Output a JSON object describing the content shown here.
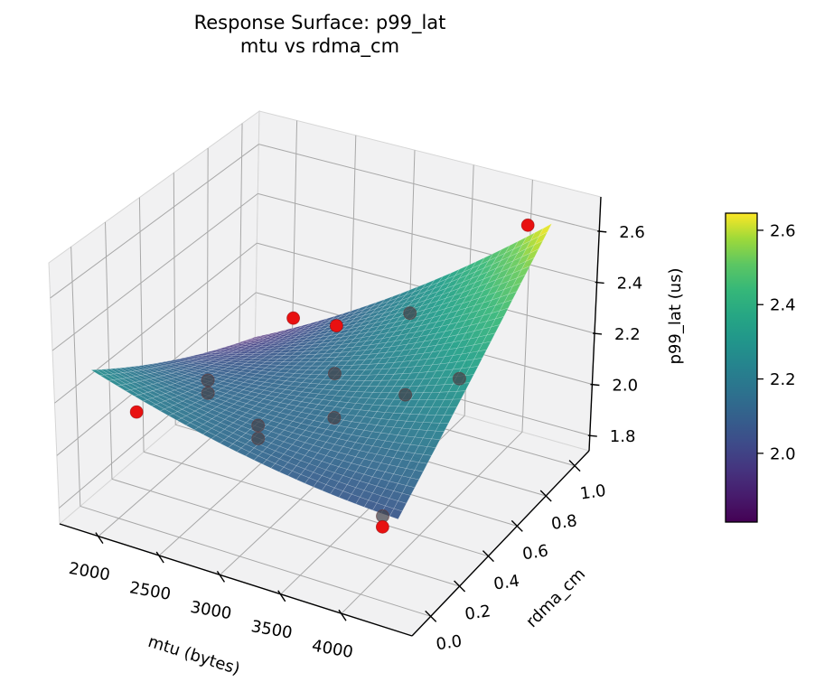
{
  "chart_data": {
    "type": "surface3d",
    "title_line1": "Response Surface: p99_lat",
    "title_line2": "mtu vs rdma_cm",
    "xlabel": "mtu (bytes)",
    "ylabel": "rdma_cm",
    "zlabel": "p99_lat (us)",
    "x_axis": {
      "range": [
        1681,
        4580
      ],
      "ticks": [
        2000,
        2500,
        3000,
        3500,
        4000
      ],
      "tick_labels": [
        "2000",
        "2500",
        "3000",
        "3500",
        "4000"
      ]
    },
    "y_axis": {
      "range": [
        -0.13,
        1.1
      ],
      "ticks": [
        0.0,
        0.2,
        0.4,
        0.6,
        0.8,
        1.0
      ],
      "tick_labels": [
        "0.0",
        "0.2",
        "0.4",
        "0.6",
        "0.8",
        "1.0"
      ]
    },
    "z_axis": {
      "range": [
        1.74,
        2.734
      ],
      "ticks": [
        1.8,
        2.0,
        2.2,
        2.4,
        2.6
      ],
      "tick_labels": [
        "1.8",
        "2.0",
        "2.2",
        "2.4",
        "2.6"
      ]
    },
    "surface": {
      "x_domain": [
        1810,
        4300
      ],
      "y_domain": [
        0,
        1
      ],
      "model": "z = b0 + b1*u + b2*v + b3*u*v + b4*u*(1-u) + b5*v*(1-v), u=(mtu-1810)/2490, v=rdma_cm",
      "coeffs": {
        "b0": 2.28,
        "b1": -0.22,
        "b2": -0.39,
        "b3": 0.98,
        "b4": -0.18,
        "b5": -0.08
      },
      "z_min": 1.89,
      "z_max": 2.65,
      "colormap": "viridis",
      "alpha": 0.93,
      "mesh_divisions": 36
    },
    "colorbar": {
      "vmin": 1.815,
      "vmax": 2.646,
      "ticks": [
        2.0,
        2.2,
        2.4,
        2.6
      ],
      "tick_labels": [
        "2.0",
        "2.2",
        "2.4",
        "2.6"
      ],
      "colormap": "viridis"
    },
    "scatter_red": {
      "name": "outlier-points",
      "color": "#e81111",
      "points": [
        {
          "mtu": 1900,
          "rdma_cm": 0.2,
          "p99_lat": 2.03
        },
        {
          "mtu": 2500,
          "rdma_cm": 0.73,
          "p99_lat": 2.2
        },
        {
          "mtu": 2850,
          "rdma_cm": 0.74,
          "p99_lat": 2.21
        },
        {
          "mtu": 4100,
          "rdma_cm": 1.0,
          "p99_lat": 2.62
        },
        {
          "mtu": 4150,
          "rdma_cm": 0.02,
          "p99_lat": 2.0
        }
      ]
    },
    "scatter_gray": {
      "name": "sample-points",
      "color": "#43434b",
      "points": [
        {
          "mtu": 2200,
          "rdma_cm": 0.42,
          "p99_lat": 2.08
        },
        {
          "mtu": 2200,
          "rdma_cm": 0.42,
          "p99_lat": 2.03
        },
        {
          "mtu": 3150,
          "rdma_cm": 0.5,
          "p99_lat": 2.19
        },
        {
          "mtu": 3150,
          "rdma_cm": 0.5,
          "p99_lat": 2.02
        },
        {
          "mtu": 2800,
          "rdma_cm": 0.28,
          "p99_lat": 2.06
        },
        {
          "mtu": 2800,
          "rdma_cm": 0.28,
          "p99_lat": 2.01
        },
        {
          "mtu": 3450,
          "rdma_cm": 0.75,
          "p99_lat": 2.33
        },
        {
          "mtu": 3800,
          "rdma_cm": 0.45,
          "p99_lat": 2.22
        },
        {
          "mtu": 4000,
          "rdma_cm": 0.65,
          "p99_lat": 2.2
        },
        {
          "mtu": 4150,
          "rdma_cm": 0.02,
          "p99_lat": 2.04
        }
      ]
    }
  },
  "colors": {
    "background": "#ffffff",
    "pane": "#f1f1f2",
    "pane_edge": "#d6d6d6",
    "grid": "#a8a8a8",
    "axis_line": "#000000",
    "red_point": "#e81111",
    "gray_point": "#43434b",
    "mesh_line": "rgba(255,255,255,0.28)"
  }
}
